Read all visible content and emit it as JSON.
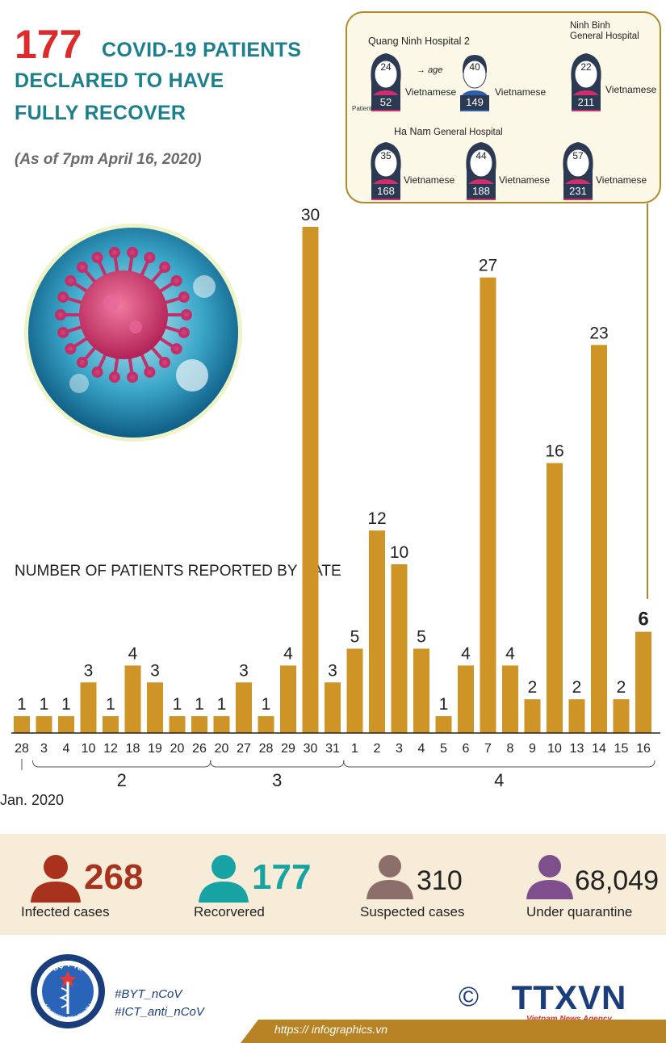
{
  "header": {
    "big_number": "177",
    "title_line1": "COVID-19 PATIENTS",
    "title_line2": "DECLARED TO HAVE",
    "title_line3": "FULLY RECOVER",
    "as_of": "(As of 7pm April 16, 2020)"
  },
  "patients_box": {
    "hospital_quang_ninh": "Quang Ninh Hospital 2",
    "hospital_ninh_binh_line1": "Ninh Binh",
    "hospital_ninh_binh_line2": "General Hospital",
    "hospital_ha_nam_name": "Ha Nam",
    "hospital_ha_nam_suffix": "General Hospital",
    "legend_age": "age",
    "legend_patient": "Patient",
    "patients": [
      {
        "age": "24",
        "id": "52",
        "gender": "female",
        "nationality": "Vietnamese"
      },
      {
        "age": "40",
        "id": "149",
        "gender": "male",
        "nationality": "Vietnamese"
      },
      {
        "age": "22",
        "id": "211",
        "gender": "female",
        "nationality": "Vietnamese"
      },
      {
        "age": "35",
        "id": "168",
        "gender": "female",
        "nationality": "Vietnamese"
      },
      {
        "age": "44",
        "id": "188",
        "gender": "female",
        "nationality": "Vietnamese"
      },
      {
        "age": "57",
        "id": "231",
        "gender": "female",
        "nationality": "Vietnamese"
      }
    ]
  },
  "chart_data": {
    "type": "bar",
    "title": "NUMBER OF PATIENTS REPORTED BY DATE",
    "xlabel": "",
    "ylabel": "",
    "ylim": [
      0,
      30
    ],
    "categories": [
      "28",
      "3",
      "4",
      "10",
      "12",
      "18",
      "19",
      "20",
      "26",
      "20",
      "27",
      "28",
      "29",
      "30",
      "31",
      "1",
      "2",
      "3",
      "4",
      "5",
      "6",
      "7",
      "8",
      "9",
      "10",
      "13",
      "14",
      "15",
      "16"
    ],
    "values": [
      1,
      1,
      1,
      3,
      1,
      4,
      3,
      1,
      1,
      1,
      3,
      1,
      4,
      30,
      3,
      5,
      12,
      10,
      5,
      1,
      4,
      27,
      4,
      2,
      16,
      2,
      23,
      2,
      6
    ],
    "highlight_last": true,
    "month_groups": [
      {
        "label": "2",
        "start": 1,
        "end": 8
      },
      {
        "label": "3",
        "start": 9,
        "end": 14
      },
      {
        "label": "4",
        "start": 15,
        "end": 28
      }
    ],
    "first_label": "Jan. 2020",
    "bar_color": "#cf9426"
  },
  "stats": {
    "infected": {
      "value": "268",
      "label": "Infected cases",
      "color": "#a8321e"
    },
    "recovered": {
      "value": "177",
      "label": "Recorvered",
      "color": "#17a3a3"
    },
    "suspected": {
      "value": "310",
      "label": "Suspected cases",
      "color": "#222222"
    },
    "quarantine": {
      "value": "68,049",
      "label": "Under quarantine",
      "color": "#222222"
    }
  },
  "footer": {
    "hashtag1": "#BYT_nCoV",
    "hashtag2": "#ICT_anti_nCoV",
    "copyright": "©",
    "agency": "TTXVN",
    "agency_sub": "Vietnam News Agency",
    "website": "https:// infographics.vn",
    "ministry_top": "BỘ Y TẾ",
    "ministry_bottom": "MINISTRY OF HEALTH"
  }
}
